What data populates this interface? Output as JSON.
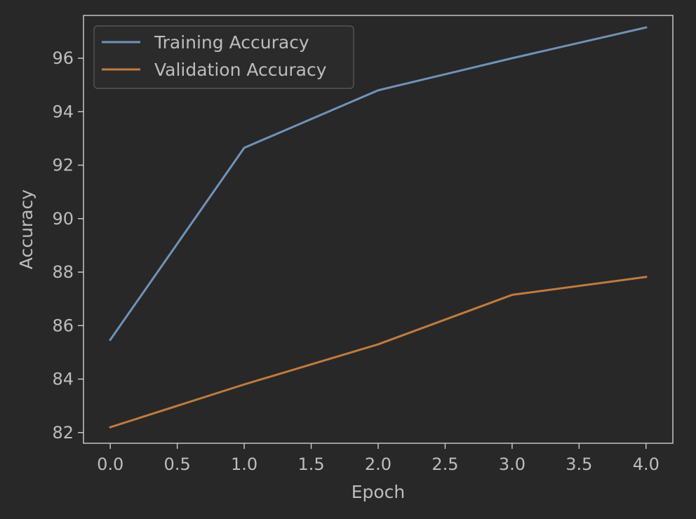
{
  "chart_data": {
    "type": "line",
    "title": "",
    "xlabel": "Epoch",
    "ylabel": "Accuracy",
    "x": [
      0,
      1,
      2,
      3,
      4
    ],
    "xlim": [
      -0.2,
      4.2
    ],
    "ylim": [
      81.6,
      97.6
    ],
    "xticks": [
      0.0,
      0.5,
      1.0,
      1.5,
      2.0,
      2.5,
      3.0,
      3.5,
      4.0
    ],
    "xtick_labels": [
      "0.0",
      "0.5",
      "1.0",
      "1.5",
      "2.0",
      "2.5",
      "3.0",
      "3.5",
      "4.0"
    ],
    "yticks": [
      82,
      84,
      86,
      88,
      90,
      92,
      94,
      96
    ],
    "ytick_labels": [
      "82",
      "84",
      "86",
      "88",
      "90",
      "92",
      "94",
      "96"
    ],
    "grid": false,
    "legend_position": "top-left",
    "series": [
      {
        "name": "Training Accuracy",
        "color": "#6f93b8",
        "values": [
          85.47,
          92.65,
          94.8,
          96.0,
          97.15
        ]
      },
      {
        "name": "Validation Accuracy",
        "color": "#c07b3d",
        "values": [
          82.2,
          83.8,
          85.3,
          87.15,
          87.82
        ]
      }
    ],
    "colors": {
      "background": "#282828",
      "axes": "#cfcfcf",
      "text": "#bdbdbd",
      "legend_border": "#555555"
    }
  }
}
